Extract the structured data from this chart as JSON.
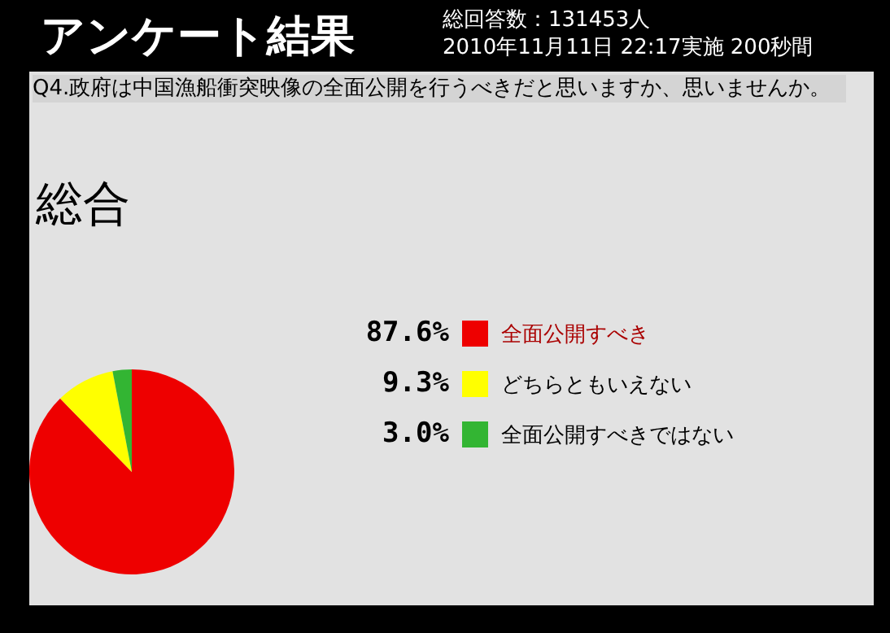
{
  "chart_data": {
    "type": "pie",
    "title": "アンケート結果",
    "subtitle": "総合",
    "annotations": [
      "総回答数：131453人",
      "2010年11月11日 22:17実施 200秒間",
      "Q4.政府は中国漁船衝突映像の全面公開を行うべきだと思いますか、思いませんか。"
    ],
    "categories": [
      "全面公開すべき",
      "どちらともいえない",
      "全面公開すべきではない"
    ],
    "values": [
      87.6,
      9.3,
      3.0
    ],
    "colors": [
      "#ee0000",
      "#ffff00",
      "#33b533"
    ],
    "value_labels": [
      "87.6%",
      "9.3%",
      "3.0%"
    ],
    "legend": "right"
  }
}
